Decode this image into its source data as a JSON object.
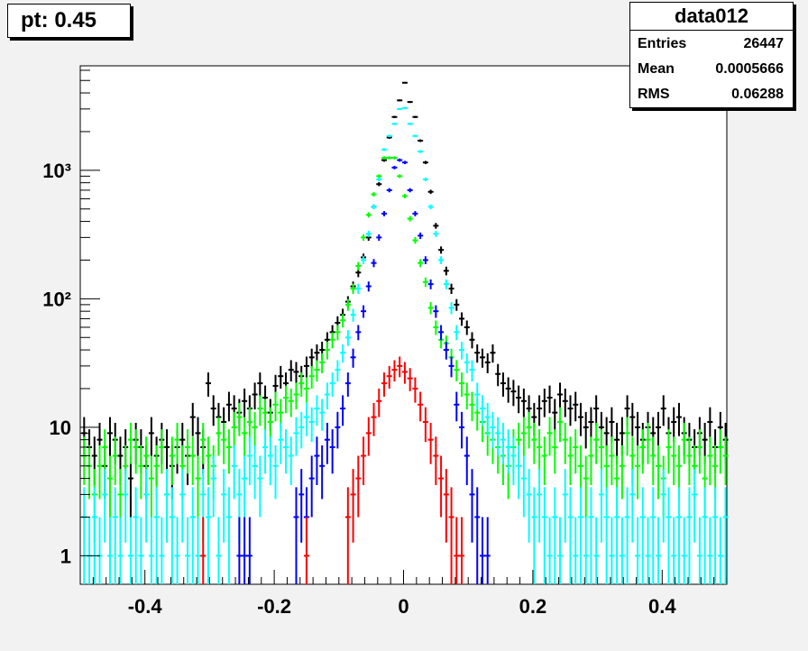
{
  "title": "pt: 0.45",
  "stats": {
    "name": "data012",
    "rows": [
      {
        "label": "Entries",
        "value": "26447"
      },
      {
        "label": "Mean",
        "value": "0.0005666"
      },
      {
        "label": "RMS",
        "value": "0.06288"
      }
    ]
  },
  "chart_data": {
    "type": "scatter",
    "title": "pt: 0.45",
    "xlabel": "",
    "ylabel": "",
    "xlim": [
      -0.5,
      0.5
    ],
    "ylim": [
      0.6,
      6500
    ],
    "yscale": "log",
    "grid": false,
    "x_ticks": [
      -0.4,
      -0.2,
      0,
      0.2,
      0.4
    ],
    "x_tick_labels": [
      "-0.4",
      "-0.2",
      "0",
      "0.2",
      "0.4"
    ],
    "y_ticks": [
      1,
      10,
      100,
      1000
    ],
    "y_tick_labels": [
      "1",
      "10",
      "10²",
      "10³"
    ],
    "x": [
      -0.494,
      -0.486,
      -0.478,
      -0.47,
      -0.462,
      -0.454,
      -0.446,
      -0.438,
      -0.43,
      -0.422,
      -0.414,
      -0.406,
      -0.398,
      -0.39,
      -0.382,
      -0.374,
      -0.366,
      -0.358,
      -0.35,
      -0.342,
      -0.334,
      -0.326,
      -0.318,
      -0.31,
      -0.302,
      -0.294,
      -0.286,
      -0.278,
      -0.27,
      -0.262,
      -0.254,
      -0.246,
      -0.238,
      -0.23,
      -0.222,
      -0.214,
      -0.206,
      -0.198,
      -0.19,
      -0.182,
      -0.174,
      -0.166,
      -0.158,
      -0.15,
      -0.142,
      -0.134,
      -0.126,
      -0.118,
      -0.11,
      -0.102,
      -0.094,
      -0.086,
      -0.078,
      -0.07,
      -0.062,
      -0.054,
      -0.046,
      -0.038,
      -0.03,
      -0.022,
      -0.014,
      -0.006,
      0.002,
      0.01,
      0.018,
      0.026,
      0.034,
      0.042,
      0.05,
      0.058,
      0.066,
      0.074,
      0.082,
      0.09,
      0.098,
      0.106,
      0.114,
      0.122,
      0.13,
      0.138,
      0.146,
      0.154,
      0.162,
      0.17,
      0.178,
      0.186,
      0.194,
      0.202,
      0.21,
      0.218,
      0.226,
      0.234,
      0.242,
      0.25,
      0.258,
      0.266,
      0.274,
      0.282,
      0.29,
      0.298,
      0.306,
      0.314,
      0.322,
      0.33,
      0.338,
      0.346,
      0.354,
      0.362,
      0.37,
      0.378,
      0.386,
      0.394,
      0.402,
      0.41,
      0.418,
      0.426,
      0.434,
      0.442,
      0.45,
      0.458,
      0.466,
      0.474,
      0.482,
      0.49,
      0.498
    ],
    "series": [
      {
        "color": "#000000",
        "values": [
          9,
          7,
          6,
          8,
          5,
          9,
          8,
          6,
          7,
          4,
          8,
          7,
          5,
          9,
          6,
          8,
          7,
          5,
          7,
          8,
          6,
          12,
          9,
          7,
          22,
          14,
          12,
          11,
          15,
          14,
          13,
          16,
          14,
          18,
          22,
          17,
          13,
          21,
          25,
          22,
          28,
          27,
          25,
          30,
          35,
          38,
          40,
          48,
          55,
          65,
          75,
          95,
          125,
          160,
          210,
          300,
          520,
          780,
          1200,
          1800,
          2600,
          3500,
          4800,
          3400,
          2600,
          1700,
          1150,
          680,
          370,
          240,
          165,
          120,
          90,
          70,
          60,
          48,
          38,
          35,
          32,
          38,
          26,
          22,
          20,
          19,
          17,
          16,
          14,
          12,
          14,
          16,
          17,
          13,
          18,
          16,
          14,
          15,
          12,
          10,
          11,
          14,
          10,
          9,
          11,
          8,
          9,
          14,
          12,
          10,
          8,
          10,
          9,
          10,
          14,
          9,
          11,
          12,
          9,
          8,
          7,
          9,
          8,
          11,
          7,
          10,
          8
        ]
      },
      {
        "color": "#00ff00",
        "values": [
          6,
          5,
          3,
          5,
          7,
          4,
          6,
          3,
          5,
          8,
          7,
          5,
          6,
          4,
          5,
          7,
          3,
          6,
          8,
          5,
          7,
          6,
          4,
          8,
          6,
          5,
          9,
          8,
          7,
          10,
          12,
          9,
          11,
          10,
          14,
          13,
          11,
          15,
          13,
          17,
          16,
          18,
          22,
          20,
          25,
          28,
          32,
          40,
          48,
          55,
          68,
          90,
          120,
          180,
          300,
          450,
          650,
          900,
          1250,
          1250,
          1250,
          900,
          630,
          420,
          285,
          190,
          135,
          85,
          60,
          48,
          45,
          35,
          28,
          22,
          18,
          15,
          13,
          11,
          9,
          8,
          7,
          6,
          5,
          7,
          8,
          9,
          10,
          8,
          7,
          6,
          9,
          7,
          11,
          8,
          6,
          7,
          5,
          4,
          6,
          8,
          7,
          5,
          6,
          4,
          5,
          9,
          6,
          5,
          7,
          8,
          6,
          5,
          4,
          7,
          6,
          5,
          8,
          6,
          5,
          7,
          4,
          6,
          5,
          7,
          6
        ]
      },
      {
        "color": "#00ffff",
        "values": [
          2,
          1,
          2,
          1,
          3,
          1,
          2,
          1,
          3,
          1,
          2,
          1,
          3,
          1,
          2,
          1,
          3,
          2,
          1,
          3,
          1,
          2,
          1,
          3,
          2,
          4,
          1,
          3,
          2,
          5,
          3,
          4,
          6,
          5,
          4,
          7,
          6,
          5,
          8,
          7,
          6,
          9,
          10,
          12,
          11,
          14,
          13,
          18,
          22,
          28,
          38,
          50,
          75,
          120,
          200,
          320,
          520,
          850,
          1450,
          1850,
          2300,
          3000,
          3050,
          2300,
          1850,
          1400,
          850,
          520,
          320,
          200,
          130,
          85,
          55,
          40,
          32,
          28,
          18,
          14,
          12,
          10,
          9,
          8,
          7,
          6,
          5,
          4,
          3,
          2,
          3,
          2,
          1,
          2,
          1,
          3,
          2,
          1,
          2,
          1,
          2,
          1,
          3,
          2,
          1,
          2,
          1,
          2,
          3,
          1,
          2,
          1,
          2,
          1,
          3,
          2,
          1,
          2,
          1,
          2,
          3,
          1,
          2,
          1,
          2,
          1,
          2
        ]
      },
      {
        "color": "#0000ff",
        "values": [
          null,
          null,
          null,
          null,
          null,
          null,
          null,
          null,
          null,
          null,
          null,
          null,
          null,
          null,
          null,
          null,
          null,
          null,
          null,
          null,
          null,
          null,
          null,
          null,
          null,
          null,
          null,
          null,
          null,
          null,
          1,
          1,
          1,
          null,
          null,
          null,
          null,
          null,
          null,
          null,
          null,
          2,
          3,
          2,
          4,
          6,
          5,
          8,
          7,
          10,
          14,
          22,
          35,
          55,
          80,
          125,
          190,
          300,
          460,
          700,
          1050,
          1200,
          1150,
          700,
          460,
          310,
          200,
          130,
          80,
          55,
          40,
          30,
          15,
          10,
          6,
          3,
          2,
          1,
          1,
          null,
          null,
          null,
          null,
          null,
          null,
          null,
          null,
          null,
          null,
          null,
          null,
          null,
          null,
          null,
          null,
          null,
          null,
          null,
          null,
          null,
          null,
          null,
          null,
          null,
          null,
          null,
          null,
          null,
          null,
          null,
          null,
          null,
          null,
          null,
          null,
          null,
          null,
          null,
          null,
          null,
          null,
          null,
          null,
          null,
          null
        ]
      },
      {
        "color": "#ff0000",
        "values": [
          null,
          null,
          null,
          null,
          null,
          null,
          null,
          null,
          null,
          null,
          null,
          null,
          null,
          null,
          null,
          null,
          null,
          null,
          null,
          null,
          null,
          null,
          null,
          1,
          null,
          null,
          null,
          null,
          null,
          null,
          null,
          null,
          null,
          null,
          null,
          null,
          null,
          null,
          null,
          null,
          null,
          null,
          null,
          1,
          null,
          null,
          null,
          null,
          null,
          null,
          null,
          2,
          3,
          4,
          6,
          9,
          12,
          16,
          22,
          25,
          28,
          30,
          27,
          24,
          20,
          15,
          11,
          8,
          6,
          4,
          3,
          2,
          1,
          1,
          null,
          null,
          null,
          null,
          null,
          null,
          null,
          null,
          null,
          null,
          null,
          null,
          null,
          null,
          null,
          null,
          null,
          null,
          null,
          null,
          null,
          null,
          null,
          null,
          null,
          null,
          null,
          null,
          null,
          null,
          null,
          null,
          null,
          null,
          null,
          null,
          null,
          null,
          null,
          null,
          null,
          null,
          null,
          null,
          null,
          null
        ]
      }
    ]
  }
}
